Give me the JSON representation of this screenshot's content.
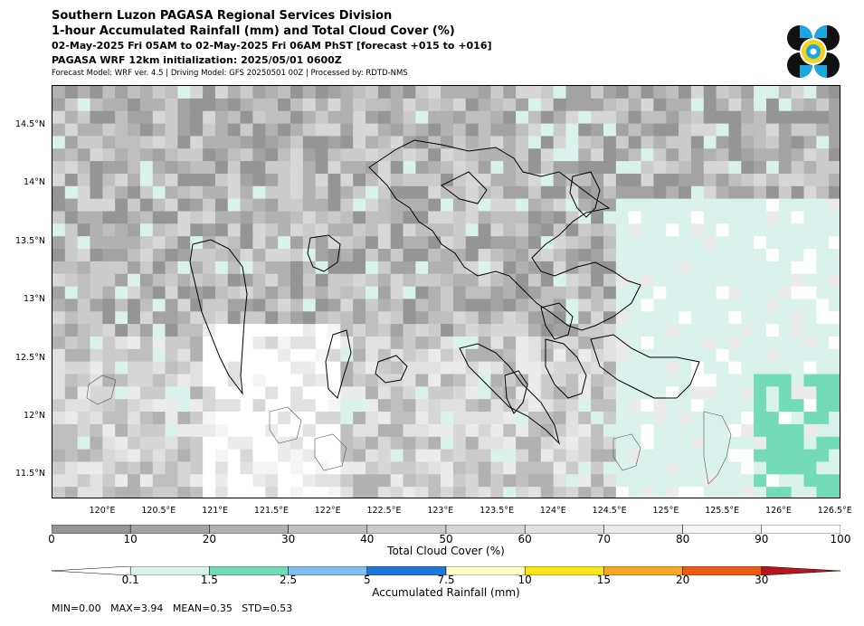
{
  "header": {
    "title": "Southern Luzon PAGASA Regional Services Division",
    "subtitle": "1-hour Accumulated Rainfall (mm) and Total Cloud Cover (%)",
    "period": "02-May-2025 Fri 05AM to 02-May-2025 Fri 06AM PhST [forecast +015 to +016]",
    "initialization": "PAGASA WRF 12km initialization: 2025/05/01 0600Z",
    "model_info": "Forecast Model: WRF ver. 4.5 | Driving Model: GFS 20250501 00Z | Processed by: RDTD-NMS"
  },
  "logo": {
    "icon": "pagasa-logo-icon"
  },
  "map": {
    "lat_range": [
      11.3,
      14.85
    ],
    "lon_range": [
      119.55,
      126.55
    ],
    "lat_ticks": [
      "14.5°N",
      "14°N",
      "13.5°N",
      "13°N",
      "12.5°N",
      "12°N",
      "11.5°N"
    ],
    "lat_values": [
      14.5,
      14.0,
      13.5,
      13.0,
      12.5,
      12.0,
      11.5
    ],
    "lon_ticks": [
      "120°E",
      "120.5°E",
      "121°E",
      "121.5°E",
      "122°E",
      "122.5°E",
      "123°E",
      "123.5°E",
      "124°E",
      "124.5°E",
      "125°E",
      "125.5°E",
      "126°E",
      "126.5°E"
    ],
    "lon_values": [
      120.0,
      120.5,
      121.0,
      121.5,
      122.0,
      122.5,
      123.0,
      123.5,
      124.0,
      124.5,
      125.0,
      125.5,
      126.0,
      126.5
    ],
    "colors": {
      "land_outline": "#000000",
      "sea_bg": "#ffffff",
      "light_rain": "#d9f3ec",
      "moderate_rain": "#74dbb8",
      "heavy_rain": "#7fbef0"
    }
  },
  "cloud_colorbar": {
    "label": "Total Cloud Cover (%)",
    "ticks": [
      "0",
      "10",
      "20",
      "30",
      "40",
      "50",
      "60",
      "70",
      "80",
      "90",
      "100"
    ],
    "colors": [
      "#959595",
      "#a3a3a3",
      "#b1b1b1",
      "#bfbfbf",
      "#cbcbcb",
      "#d7d7d7",
      "#e1e1e1",
      "#ebebeb",
      "#f5f5f5",
      "#ffffff"
    ]
  },
  "rain_colorbar": {
    "label": "Accumulated Rainfall (mm)",
    "ticks": [
      "0.1",
      "1.5",
      "2.5",
      "5",
      "7.5",
      "10",
      "15",
      "20",
      "30"
    ],
    "colors": [
      "#d9f3ec",
      "#74dbb8",
      "#7fbef0",
      "#1f78d8",
      "#fdfdc8",
      "#fae51a",
      "#f7a724",
      "#ee5a12",
      "#b8161b"
    ]
  },
  "stats": {
    "text": "MIN=0.00   MAX=3.94   MEAN=0.35   STD=0.53"
  }
}
